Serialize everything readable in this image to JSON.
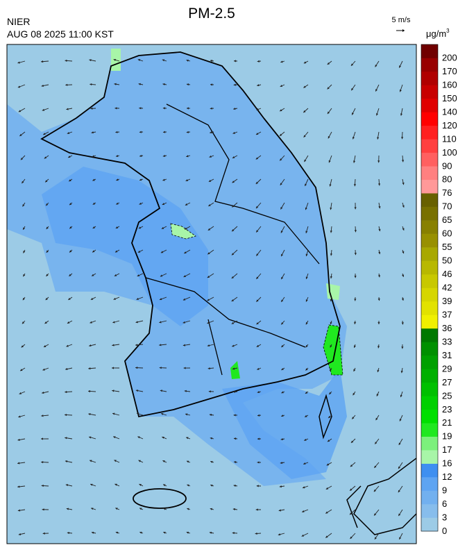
{
  "header": {
    "title": "PM-2.5",
    "agency": "NIER",
    "datetime": "AUG 08 2025 11:00 KST",
    "wind_scale": "5 m/s"
  },
  "legend": {
    "unit": {
      "text": "μg/m",
      "superscript": "3"
    },
    "ticks": [
      0,
      3,
      6,
      9,
      12,
      16,
      17,
      19,
      21,
      23,
      25,
      27,
      29,
      31,
      33,
      36,
      37,
      39,
      42,
      46,
      50,
      55,
      60,
      65,
      70,
      76,
      80,
      90,
      100,
      110,
      120,
      140,
      150,
      160,
      170,
      200
    ],
    "colors": [
      "#9ccbe6",
      "#87bdec",
      "#72b0ef",
      "#5ea4f2",
      "#3f8ff0",
      "#a8f5a8",
      "#7cf07c",
      "#20e820",
      "#00e000",
      "#00d000",
      "#00c000",
      "#00b000",
      "#00a000",
      "#009000",
      "#007800",
      "#f0f000",
      "#e2e200",
      "#d6d600",
      "#c8c800",
      "#b8b800",
      "#a8a800",
      "#989000",
      "#888000",
      "#787000",
      "#686000",
      "#ff9999",
      "#ff8080",
      "#ff6060",
      "#ff4040",
      "#ff2020",
      "#ff0000",
      "#e00000",
      "#c80000",
      "#b00000",
      "#980000",
      "#700000"
    ]
  }
}
